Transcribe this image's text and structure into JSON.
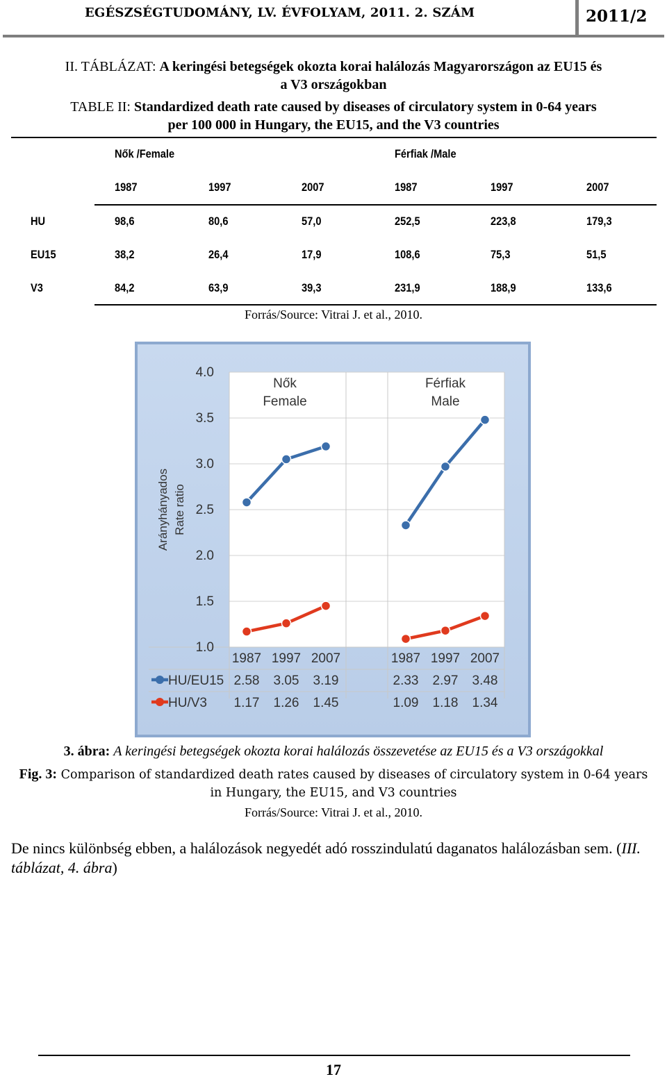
{
  "header": {
    "journal": "EGÉSZSÉGTUDOMÁNY, LV. ÉVFOLYAM, 2011. 2. SZÁM",
    "issue": "2011/2"
  },
  "table": {
    "caption_hu_label": "II. TÁBLÁZAT:",
    "caption_hu_line1": "A keringési betegségek okozta korai halálozás Magyarországon az EU15 és",
    "caption_hu_line2": "a V3 országokban",
    "caption_en_label": "TABLE II:",
    "caption_en_line1": "Standardized death rate caused by diseases of circulatory system in 0-64 years",
    "caption_en_line2": "per 100 000 in Hungary, the EU15, and the V3 countries",
    "group_female": "Nők /Female",
    "group_male": "Férfiak /Male",
    "years": [
      "1987",
      "1997",
      "2007",
      "1987",
      "1997",
      "2007"
    ],
    "rows": [
      {
        "label": "HU",
        "values": [
          "98,6",
          "80,6",
          "57,0",
          "252,5",
          "223,8",
          "179,3"
        ]
      },
      {
        "label": "EU15",
        "values": [
          "38,2",
          "26,4",
          "17,9",
          "108,6",
          "75,3",
          "51,5"
        ]
      },
      {
        "label": "V3",
        "values": [
          "84,2",
          "63,9",
          "39,3",
          "231,9",
          "188,9",
          "133,6"
        ]
      }
    ],
    "source": "Forrás/Source: Vitrai J. et al., 2010."
  },
  "chart_data": {
    "type": "line",
    "ylabel_line1": "Arányhányados",
    "ylabel_line2": "Rate ratio",
    "ylim": [
      1.0,
      4.0
    ],
    "yticks": [
      "1.0",
      "1.5",
      "2.0",
      "2.5",
      "3.0",
      "3.5",
      "4.0"
    ],
    "grid": true,
    "groups": [
      {
        "label_line1": "Nők",
        "label_line2": "Female",
        "x": [
          "1987",
          "1997",
          "2007"
        ]
      },
      {
        "label_line1": "Férfiak",
        "label_line2": "Male",
        "x": [
          "1987",
          "1997",
          "2007"
        ]
      }
    ],
    "series": [
      {
        "name": "HU/EU15",
        "color": "#3b6eab",
        "female": [
          2.58,
          3.05,
          3.19
        ],
        "male": [
          2.33,
          2.97,
          3.48
        ],
        "female_labels": [
          "2.58",
          "3.05",
          "3.19"
        ],
        "male_labels": [
          "2.33",
          "2.97",
          "3.48"
        ]
      },
      {
        "name": "HU/V3",
        "color": "#e03a1e",
        "female": [
          1.17,
          1.26,
          1.45
        ],
        "male": [
          1.09,
          1.18,
          1.34
        ],
        "female_labels": [
          "1.17",
          "1.26",
          "1.45"
        ],
        "male_labels": [
          "1.09",
          "1.18",
          "1.34"
        ]
      }
    ]
  },
  "figure": {
    "label_hu": "3. ábra:",
    "caption_hu": "A keringési betegségek okozta korai halálozás összevetése az EU15 és a V3 országokkal",
    "label_en": "Fig. 3:",
    "caption_en_line1": "Comparison of standardized death rates caused by diseases of circulatory system in 0-64 years",
    "caption_en_line2": "in Hungary, the EU15, and V3 countries",
    "source": "Forrás/Source: Vitrai J. et al., 2010."
  },
  "body_text": {
    "para_main": "De nincs különbség ebben, a halálozások negyedét adó rosszindulatú daganatos halálozásban sem. (",
    "para_ref": "III. táblázat, 4. ábra",
    "para_end": ")"
  },
  "footer": {
    "page_number": "17"
  }
}
